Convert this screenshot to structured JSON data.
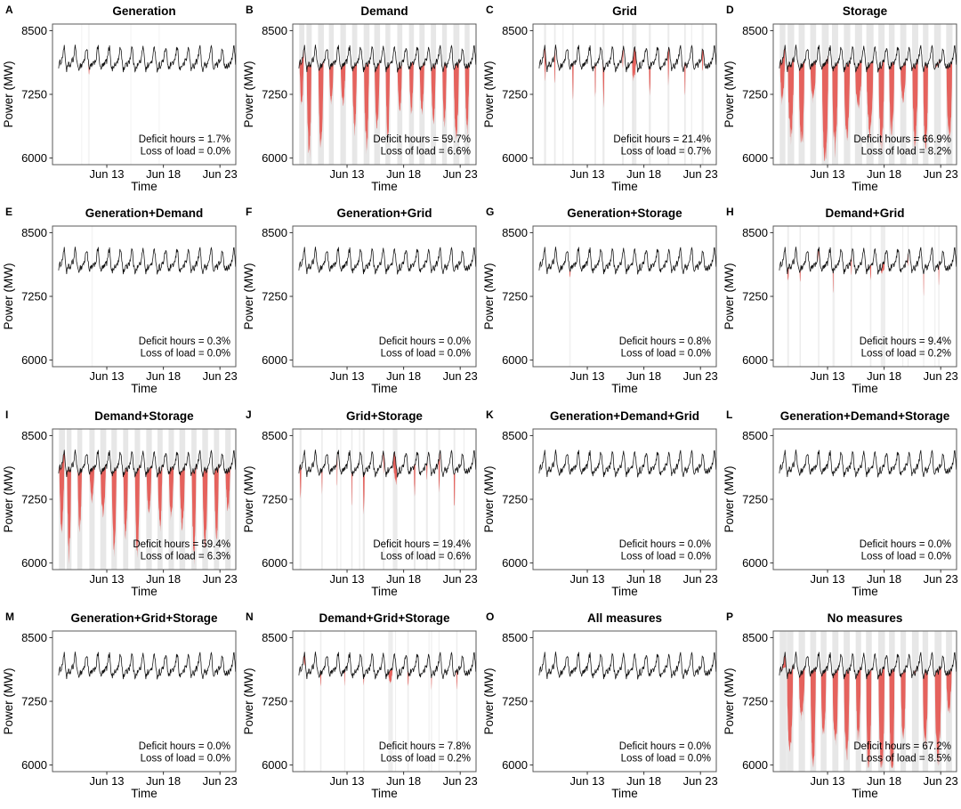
{
  "figure": {
    "description": "4x4 small-multiples of power system time series showing deficit hours and loss of load under combinations of flexibility measures",
    "colors": {
      "line": "#111111",
      "deficit_fill": "#e4534e",
      "band_fill": "#e3e3e3",
      "box_border": "#595959",
      "background": "#ffffff"
    }
  },
  "chart_data": {
    "type": "line",
    "x_axis": {
      "label": "Time",
      "tick_labels": [
        "Jun 13",
        "Jun 18",
        "Jun 23"
      ]
    },
    "y_axis": {
      "label": "Power (MW)",
      "ticks": [
        6000,
        7250,
        8500
      ],
      "tick_labels": [
        "6000",
        "7250",
        "8500"
      ]
    },
    "layout": {
      "box": {
        "l": 59,
        "t": 27,
        "r": 265,
        "b": 185
      },
      "ylim": [
        5870,
        8630
      ],
      "xlim_days": 16.2,
      "tick_days": [
        4.8,
        9.8,
        14.8
      ],
      "grid": false,
      "legend": "none"
    },
    "series_model": {
      "note": "black curve is the same hourly load trace in every panel",
      "base_mw": 7905,
      "daily_amplitude_mw": 150,
      "sub_daily_amplitude_mw": 85,
      "tertiary_amplitude_mw": 45,
      "noise_mw": 65,
      "seed": 1234,
      "red_area_meaning": "power deficit below load line",
      "gray_band_meaning": "deficit hours"
    },
    "panels": [
      {
        "letter": "A",
        "title": "Generation",
        "deficit_hours_pct": 1.7,
        "loss_of_load_pct": 0.0,
        "deficit_label": "Deficit hours = 1.7%",
        "loss_label": "Loss of load = 0.0%",
        "render": {
          "seed": 11,
          "mode": "trace",
          "band_alpha": 0.4,
          "events": [
            {
              "d": 3.15,
              "w": 3.0,
              "depth": 150
            },
            {
              "d": 2.55,
              "w": 1.5,
              "depth": 0
            },
            {
              "d": 9.4,
              "w": 1.3,
              "depth": 0
            },
            {
              "d": 6.9,
              "w": 1.0,
              "depth": 0
            }
          ]
        }
      },
      {
        "letter": "B",
        "title": "Demand",
        "deficit_hours_pct": 59.7,
        "loss_of_load_pct": 6.6,
        "deficit_label": "Deficit hours = 59.7%",
        "loss_label": "Loss of load = 6.6%",
        "render": {
          "seed": 22,
          "mode": "daily",
          "depth": [
            500,
            1950
          ],
          "win_d": [
            0.36,
            0.5
          ],
          "shape": 0.75,
          "band_alpha": 0.85
        }
      },
      {
        "letter": "C",
        "title": "Grid",
        "deficit_hours_pct": 21.4,
        "loss_of_load_pct": 0.7,
        "deficit_label": "Deficit hours = 21.4%",
        "loss_label": "Loss of load = 0.7%",
        "render": {
          "seed": 33,
          "mode": "sparse",
          "n": 11,
          "depth": [
            250,
            750
          ],
          "win_h": [
            1.5,
            4.0
          ],
          "wide": true,
          "faint": 3,
          "band_alpha": 0.7
        }
      },
      {
        "letter": "D",
        "title": "Storage",
        "deficit_hours_pct": 66.9,
        "loss_of_load_pct": 8.2,
        "deficit_label": "Deficit hours = 66.9%",
        "loss_label": "Loss of load = 8.2%",
        "render": {
          "seed": 44,
          "mode": "daily",
          "depth": [
            650,
            2150
          ],
          "win_d": [
            0.42,
            0.58
          ],
          "shape": 0.55,
          "band_alpha": 0.85
        }
      },
      {
        "letter": "E",
        "title": "Generation+Demand",
        "deficit_hours_pct": 0.3,
        "loss_of_load_pct": 0.0,
        "deficit_label": "Deficit hours = 0.3%",
        "loss_label": "Loss of load = 0.0%",
        "render": {
          "seed": 55,
          "mode": "trace",
          "band_alpha": 0.4,
          "events": [
            {
              "d": 3.45,
              "w": 2.4,
              "depth": 0
            }
          ]
        }
      },
      {
        "letter": "F",
        "title": "Generation+Grid",
        "deficit_hours_pct": 0.0,
        "loss_of_load_pct": 0.0,
        "deficit_label": "Deficit hours = 0.0%",
        "loss_label": "Loss of load = 0.0%",
        "render": {
          "seed": 66,
          "mode": "none"
        }
      },
      {
        "letter": "G",
        "title": "Generation+Storage",
        "deficit_hours_pct": 0.8,
        "loss_of_load_pct": 0.0,
        "deficit_label": "Deficit hours = 0.8%",
        "loss_label": "Loss of load = 0.0%",
        "render": {
          "seed": 77,
          "mode": "trace",
          "band_alpha": 0.45,
          "events": [
            {
              "d": 3.2,
              "w": 3.0,
              "depth": 130
            }
          ]
        }
      },
      {
        "letter": "H",
        "title": "Demand+Grid",
        "deficit_hours_pct": 9.4,
        "loss_of_load_pct": 0.2,
        "deficit_label": "Deficit hours = 9.4%",
        "loss_label": "Loss of load = 0.2%",
        "render": {
          "seed": 88,
          "mode": "sparse",
          "n": 10,
          "depth": [
            160,
            430
          ],
          "win_h": [
            1.5,
            3.5
          ],
          "wide": true,
          "faint": 3,
          "band_alpha": 0.65
        }
      },
      {
        "letter": "I",
        "title": "Demand+Storage",
        "deficit_hours_pct": 59.4,
        "loss_of_load_pct": 6.3,
        "deficit_label": "Deficit hours = 59.4%",
        "loss_label": "Loss of load = 6.3%",
        "render": {
          "seed": 99,
          "mode": "daily",
          "depth": [
            500,
            1900
          ],
          "win_d": [
            0.36,
            0.5
          ],
          "shape": 0.75,
          "band_alpha": 0.85
        }
      },
      {
        "letter": "J",
        "title": "Grid+Storage",
        "deficit_hours_pct": 19.4,
        "loss_of_load_pct": 0.6,
        "deficit_label": "Deficit hours = 19.4%",
        "loss_label": "Loss of load = 0.6%",
        "render": {
          "seed": 110,
          "mode": "sparse",
          "n": 11,
          "depth": [
            230,
            700
          ],
          "win_h": [
            1.5,
            4.0
          ],
          "wide": true,
          "faint": 3,
          "band_alpha": 0.7
        }
      },
      {
        "letter": "K",
        "title": "Generation+Demand+Grid",
        "deficit_hours_pct": 0.0,
        "loss_of_load_pct": 0.0,
        "deficit_label": "Deficit hours = 0.0%",
        "loss_label": "Loss of load = 0.0%",
        "render": {
          "seed": 121,
          "mode": "none"
        }
      },
      {
        "letter": "L",
        "title": "Generation+Demand+Storage",
        "deficit_hours_pct": 0.0,
        "loss_of_load_pct": 0.0,
        "deficit_label": "Deficit hours = 0.0%",
        "loss_label": "Loss of load = 0.0%",
        "render": {
          "seed": 132,
          "mode": "none"
        }
      },
      {
        "letter": "M",
        "title": "Generation+Grid+Storage",
        "deficit_hours_pct": 0.0,
        "loss_of_load_pct": 0.0,
        "deficit_label": "Deficit hours = 0.0%",
        "loss_label": "Loss of load = 0.0%",
        "render": {
          "seed": 143,
          "mode": "none"
        }
      },
      {
        "letter": "N",
        "title": "Demand+Grid+Storage",
        "deficit_hours_pct": 7.8,
        "loss_of_load_pct": 0.2,
        "deficit_label": "Deficit hours = 7.8%",
        "loss_label": "Loss of load = 0.2%",
        "render": {
          "seed": 154,
          "mode": "sparse",
          "n": 8,
          "depth": [
            160,
            420
          ],
          "win_h": [
            1.5,
            3.5
          ],
          "wide": true,
          "faint": 3,
          "band_alpha": 0.6
        }
      },
      {
        "letter": "O",
        "title": "All measures",
        "deficit_hours_pct": 0.0,
        "loss_of_load_pct": 0.0,
        "deficit_label": "Deficit hours = 0.0%",
        "loss_label": "Loss of load = 0.0%",
        "render": {
          "seed": 165,
          "mode": "none"
        }
      },
      {
        "letter": "P",
        "title": "No measures",
        "deficit_hours_pct": 67.2,
        "loss_of_load_pct": 8.5,
        "deficit_label": "Deficit hours = 67.2%",
        "loss_label": "Loss of load = 8.5%",
        "render": {
          "seed": 176,
          "mode": "daily",
          "depth": [
            700,
            2150
          ],
          "win_d": [
            0.42,
            0.58
          ],
          "shape": 0.55,
          "band_alpha": 0.85
        }
      }
    ]
  }
}
